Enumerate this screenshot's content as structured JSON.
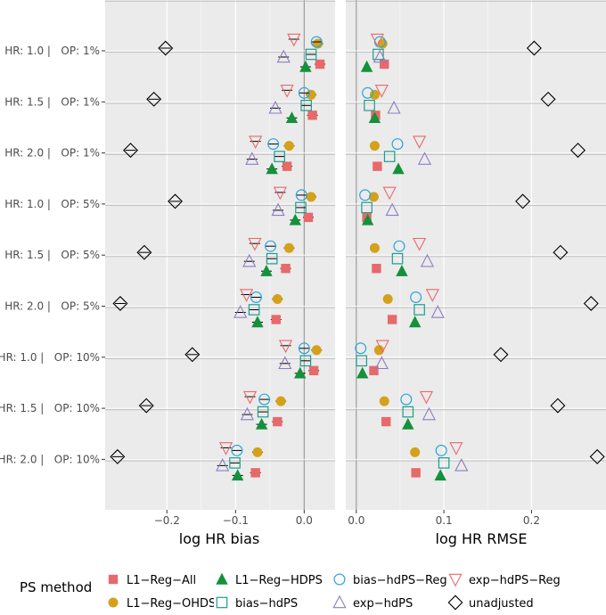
{
  "chart_data": {
    "type": "scatter",
    "row_labels": [
      "HR: 1.0 |   OP: 1%",
      "HR: 1.5 |   OP: 1%",
      "HR: 2.0 |   OP: 1%",
      "HR: 1.0 |   OP: 5%",
      "HR: 1.5 |   OP: 5%",
      "HR: 2.0 |   OP: 5%",
      "HR: 1.0 |   OP: 10%",
      "HR: 1.5 |   OP: 10%",
      "HR: 2.0 |   OP: 10%"
    ],
    "legend_title": "PS method",
    "legend_position": "bottom",
    "grid": true,
    "panels": [
      {
        "xlabel": "log HR bias",
        "xlim": [
          -0.29,
          0.045
        ],
        "xticks": [
          -0.2,
          -0.1,
          0.0
        ],
        "xtick_labels": [
          "−0.2",
          "−0.1",
          "0.0"
        ],
        "has_error_bars": true
      },
      {
        "xlabel": "log HR RMSE",
        "xlim": [
          -0.012,
          0.285
        ],
        "xticks": [
          0.0,
          0.1,
          0.2
        ],
        "xtick_labels": [
          "0.0",
          "0.1",
          "0.2"
        ],
        "has_error_bars": false
      }
    ],
    "series": [
      {
        "name": "L1−Reg−All",
        "shape": "square",
        "color": "#e8696b",
        "bias": [
          0.023,
          0.012,
          -0.025,
          0.006,
          -0.027,
          -0.041,
          0.014,
          -0.039,
          -0.071
        ],
        "rmse": [
          0.032,
          0.022,
          0.024,
          0.012,
          0.023,
          0.041,
          0.02,
          0.034,
          0.068
        ]
      },
      {
        "name": "L1−Reg−OHDSI",
        "shape": "circle-filled",
        "color": "#d4a11b",
        "bias": [
          0.02,
          0.01,
          -0.022,
          0.01,
          -0.022,
          -0.039,
          0.018,
          -0.034,
          -0.068
        ],
        "rmse": [
          0.03,
          0.021,
          0.021,
          0.02,
          0.021,
          0.036,
          0.026,
          0.032,
          0.067
        ]
      },
      {
        "name": "L1−Reg−HDPS",
        "shape": "triangle-filled",
        "color": "#14913c",
        "bias": [
          0.002,
          -0.018,
          -0.047,
          -0.013,
          -0.055,
          -0.068,
          -0.006,
          -0.062,
          -0.097
        ],
        "rmse": [
          0.012,
          0.021,
          0.048,
          0.013,
          0.052,
          0.067,
          0.007,
          0.059,
          0.096
        ]
      },
      {
        "name": "bias−hdPS",
        "shape": "square-open",
        "color": "#1a9e8c",
        "bias": [
          0.01,
          0.003,
          -0.036,
          -0.005,
          -0.047,
          -0.073,
          0.002,
          -0.06,
          -0.101
        ],
        "rmse": [
          0.025,
          0.015,
          0.038,
          0.012,
          0.047,
          0.072,
          0.006,
          0.059,
          0.1
        ]
      },
      {
        "name": "bias−hdPS−Reg",
        "shape": "circle-open",
        "color": "#2aa6d8",
        "bias": [
          0.018,
          0.0,
          -0.045,
          -0.004,
          -0.049,
          -0.07,
          0.0,
          -0.058,
          -0.098
        ],
        "rmse": [
          0.027,
          0.013,
          0.047,
          0.01,
          0.049,
          0.068,
          0.005,
          0.057,
          0.097
        ]
      },
      {
        "name": "exp−hdPS",
        "shape": "triangle-open",
        "color": "#8e7cc3",
        "bias": [
          -0.03,
          -0.042,
          -0.076,
          -0.038,
          -0.08,
          -0.093,
          -0.028,
          -0.083,
          -0.119
        ],
        "rmse": [
          0.027,
          0.043,
          0.078,
          0.041,
          0.081,
          0.093,
          0.029,
          0.083,
          0.12
        ]
      },
      {
        "name": "exp−hdPS−Reg",
        "shape": "triangle-down-open",
        "color": "#e8696b",
        "bias": [
          -0.015,
          -0.025,
          -0.071,
          -0.035,
          -0.072,
          -0.084,
          -0.027,
          -0.079,
          -0.114
        ],
        "rmse": [
          0.024,
          0.029,
          0.072,
          0.038,
          0.072,
          0.087,
          0.03,
          0.08,
          0.114
        ]
      },
      {
        "name": "unadjusted",
        "shape": "diamond-open",
        "color": "#000000",
        "bias": [
          -0.202,
          -0.219,
          -0.253,
          -0.188,
          -0.233,
          -0.268,
          -0.163,
          -0.23,
          -0.272
        ],
        "rmse": [
          0.203,
          0.219,
          0.253,
          0.19,
          0.233,
          0.268,
          0.165,
          0.23,
          0.275
        ]
      }
    ]
  }
}
